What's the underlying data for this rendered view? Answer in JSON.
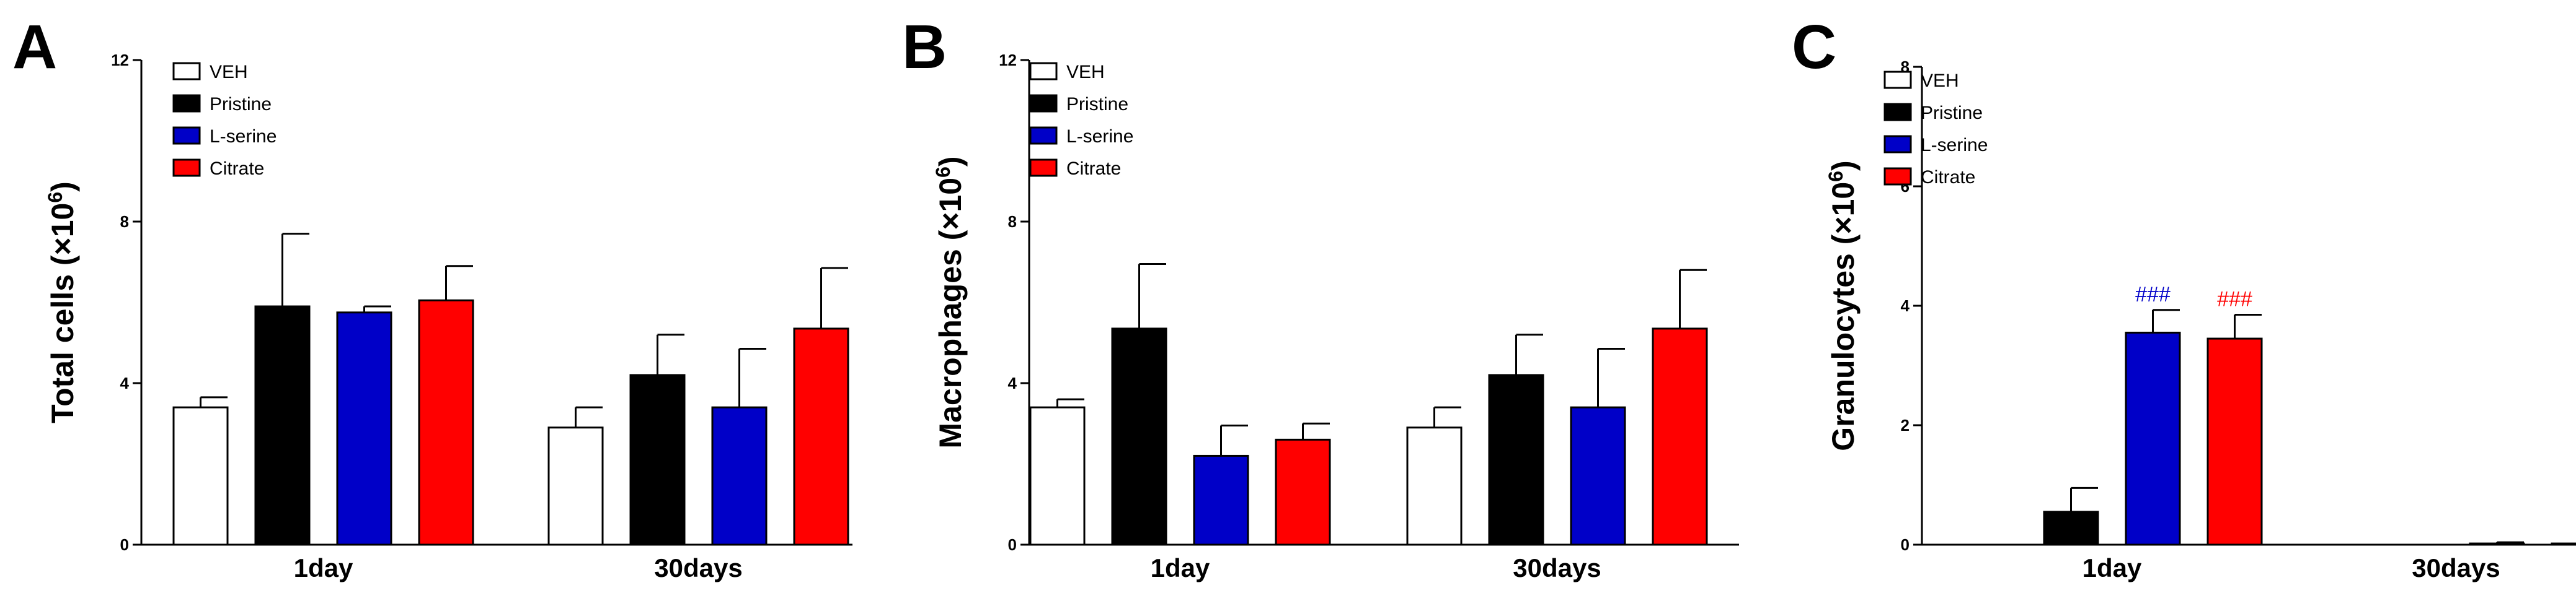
{
  "figure": {
    "legend": [
      "VEH",
      "Pristine",
      "L-serine",
      "Citrate"
    ],
    "colors": {
      "VEH": "#ffffff",
      "Pristine": "#000000",
      "L-serine": "#0000c8",
      "Citrate": "#ff0000"
    }
  },
  "chart_data": [
    {
      "panel": "A",
      "type": "bar",
      "ylabel": "Total cells (×10",
      "ylabel_sup": "6",
      "ylabel_close": ")",
      "ylim": [
        0,
        12
      ],
      "yticks": [
        "0",
        "4",
        "8",
        "12"
      ],
      "categories": [
        "1day",
        "30days"
      ],
      "series": [
        {
          "name": "VEH",
          "values": [
            3.4,
            2.9
          ],
          "errors": [
            0.25,
            0.5
          ]
        },
        {
          "name": "Pristine",
          "values": [
            5.9,
            4.2
          ],
          "errors": [
            1.8,
            1.0
          ]
        },
        {
          "name": "L-serine",
          "values": [
            5.75,
            3.4
          ],
          "errors": [
            0.15,
            1.45
          ]
        },
        {
          "name": "Citrate",
          "values": [
            6.05,
            5.35
          ],
          "errors": [
            0.85,
            1.5
          ]
        }
      ],
      "annotations": []
    },
    {
      "panel": "B",
      "type": "bar",
      "ylabel": "Macrophages (×10",
      "ylabel_sup": "6",
      "ylabel_close": ")",
      "ylim": [
        0,
        12
      ],
      "yticks": [
        "0",
        "4",
        "8",
        "12"
      ],
      "categories": [
        "1day",
        "30days"
      ],
      "series": [
        {
          "name": "VEH",
          "values": [
            3.4,
            2.9
          ],
          "errors": [
            0.2,
            0.5
          ]
        },
        {
          "name": "Pristine",
          "values": [
            5.35,
            4.2
          ],
          "errors": [
            1.6,
            1.0
          ]
        },
        {
          "name": "L-serine",
          "values": [
            2.2,
            3.4
          ],
          "errors": [
            0.75,
            1.45
          ]
        },
        {
          "name": "Citrate",
          "values": [
            2.6,
            5.35
          ],
          "errors": [
            0.4,
            1.45
          ]
        }
      ],
      "annotations": []
    },
    {
      "panel": "C",
      "type": "bar",
      "ylabel": "Granulocytes (×10",
      "ylabel_sup": "6",
      "ylabel_close": ")",
      "ylim": [
        0,
        8
      ],
      "yticks": [
        "0",
        "2",
        "4",
        "6",
        "8"
      ],
      "categories": [
        "1day",
        "30days"
      ],
      "series": [
        {
          "name": "VEH",
          "values": [
            0,
            0
          ],
          "errors": [
            0,
            0
          ]
        },
        {
          "name": "Pristine",
          "values": [
            0.55,
            0
          ],
          "errors": [
            0.4,
            0
          ]
        },
        {
          "name": "L-serine",
          "values": [
            3.55,
            0.02
          ],
          "errors": [
            0.38,
            0.02
          ]
        },
        {
          "name": "Citrate",
          "values": [
            3.45,
            0.02
          ],
          "errors": [
            0.4,
            0.02
          ]
        }
      ],
      "annotations": [
        {
          "text": "###",
          "category": "1day",
          "series": "L-serine",
          "color": "#0000c8"
        },
        {
          "text": "###",
          "category": "1day",
          "series": "Citrate",
          "color": "#ff0000"
        }
      ]
    }
  ]
}
